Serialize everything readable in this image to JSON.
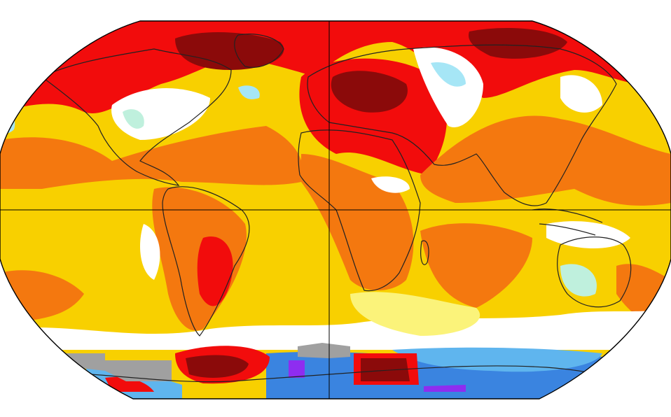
{
  "map": {
    "projection": "Robinson",
    "colors": {
      "darkred": "#8b0a0a",
      "red": "#f20c0c",
      "orangered": "#f24a0c",
      "orange": "#f4780f",
      "lightorange": "#f7a21c",
      "yellow": "#f8d000",
      "paleyellow": "#fbf37a",
      "white": "#ffffff",
      "mint": "#bff0dd",
      "lightblue": "#a6e6f6",
      "skyblue": "#5fb5ee",
      "blue": "#3a84e0",
      "purple": "#8e2df0",
      "gray": "#a0a0a0",
      "coast": "#222222",
      "grid": "#000000"
    }
  }
}
